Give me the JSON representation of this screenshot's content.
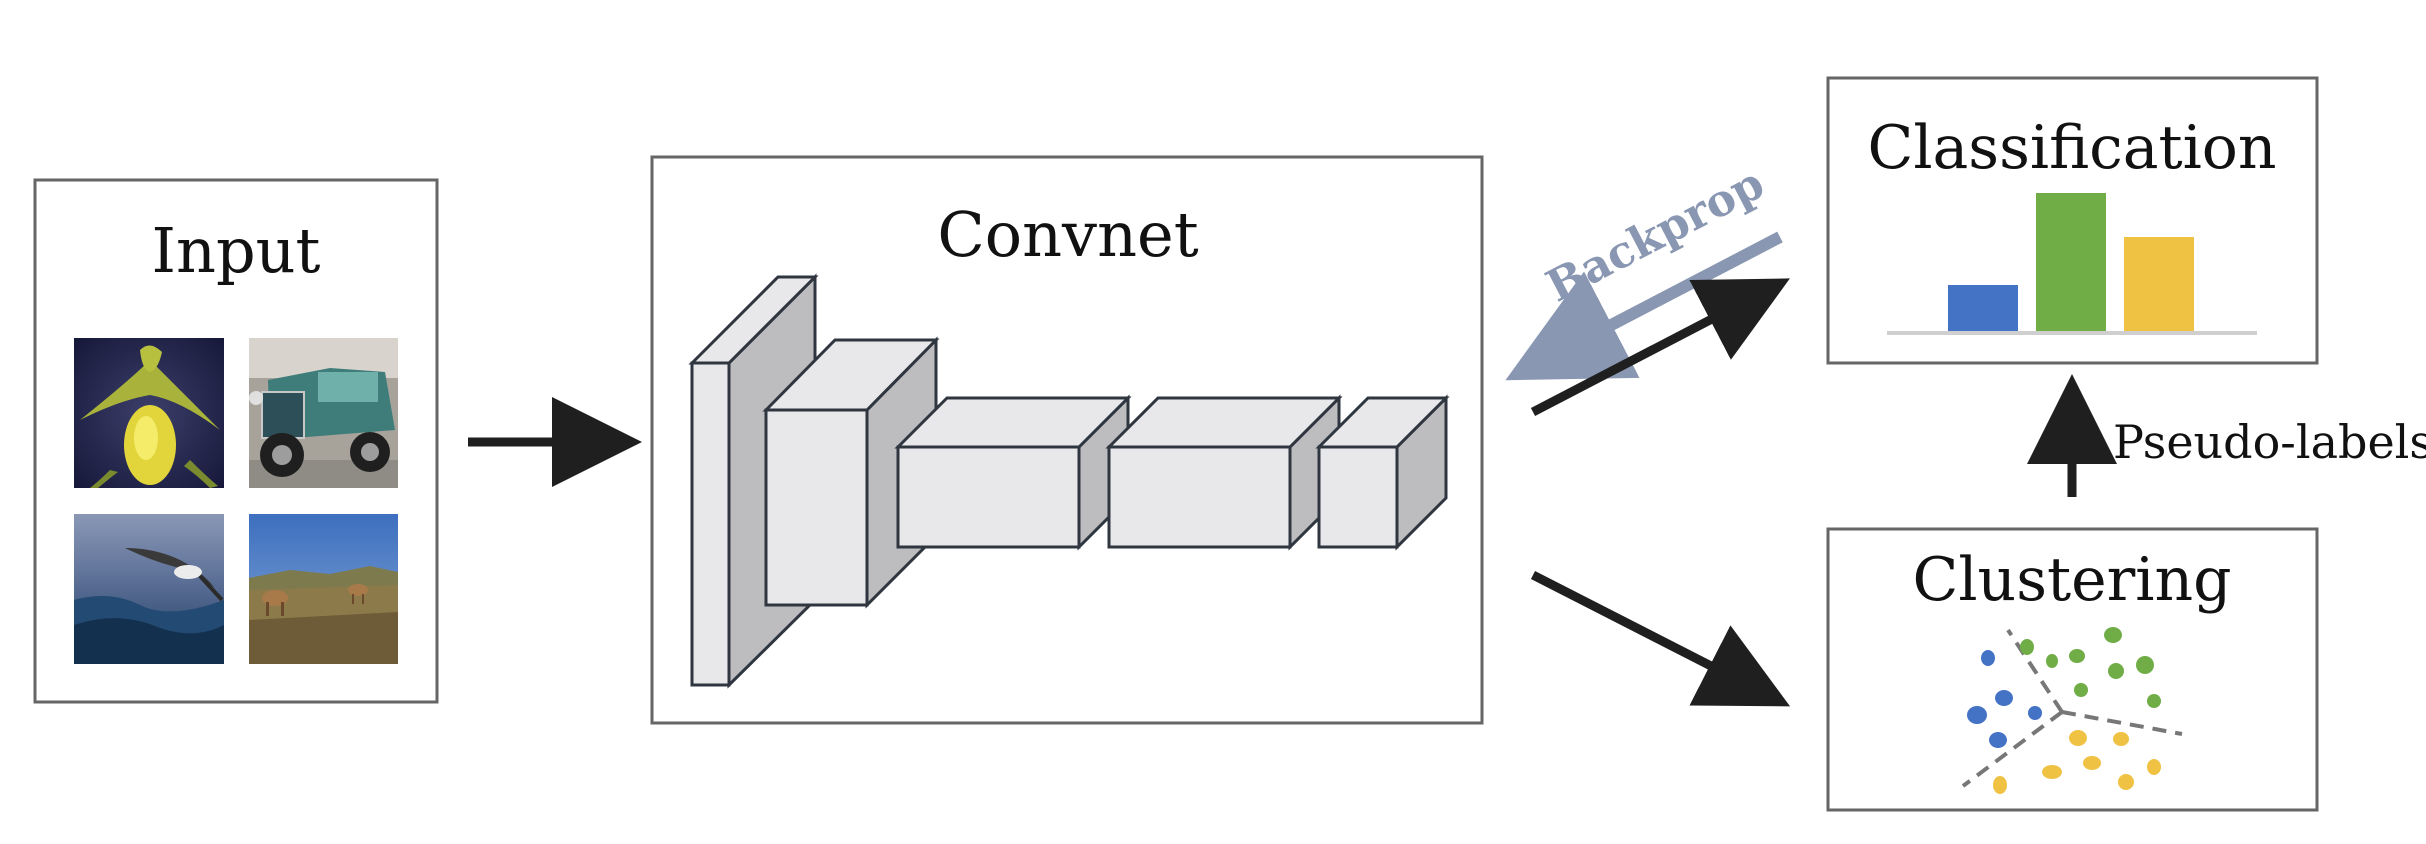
{
  "input": {
    "title": "Input"
  },
  "convnet": {
    "title": "Convnet"
  },
  "classification": {
    "title": "Classification",
    "bars": [
      {
        "color": "#4472c4",
        "value": 0.33
      },
      {
        "color": "#70ad47",
        "value": 1.0
      },
      {
        "color": "#f0c244",
        "value": 0.68
      }
    ]
  },
  "clustering": {
    "title": "Clustering",
    "cluster_colors": {
      "blue": "#4472c4",
      "green": "#70ad47",
      "yellow": "#f0c244"
    }
  },
  "backprop": {
    "label": "Backprop",
    "color": "#8a97b2"
  },
  "pseudo_labels": {
    "label": "Pseudo-labels"
  },
  "colors": {
    "box_border": "#666666",
    "arrow": "#1f1f1f",
    "layer_front": "#e8e8ea",
    "layer_side": "#bdbdbf",
    "layer_stroke": "#2f3640"
  },
  "thumbnails": [
    {
      "name": "flower-image"
    },
    {
      "name": "car-image"
    },
    {
      "name": "bird-image"
    },
    {
      "name": "deer-image"
    }
  ]
}
